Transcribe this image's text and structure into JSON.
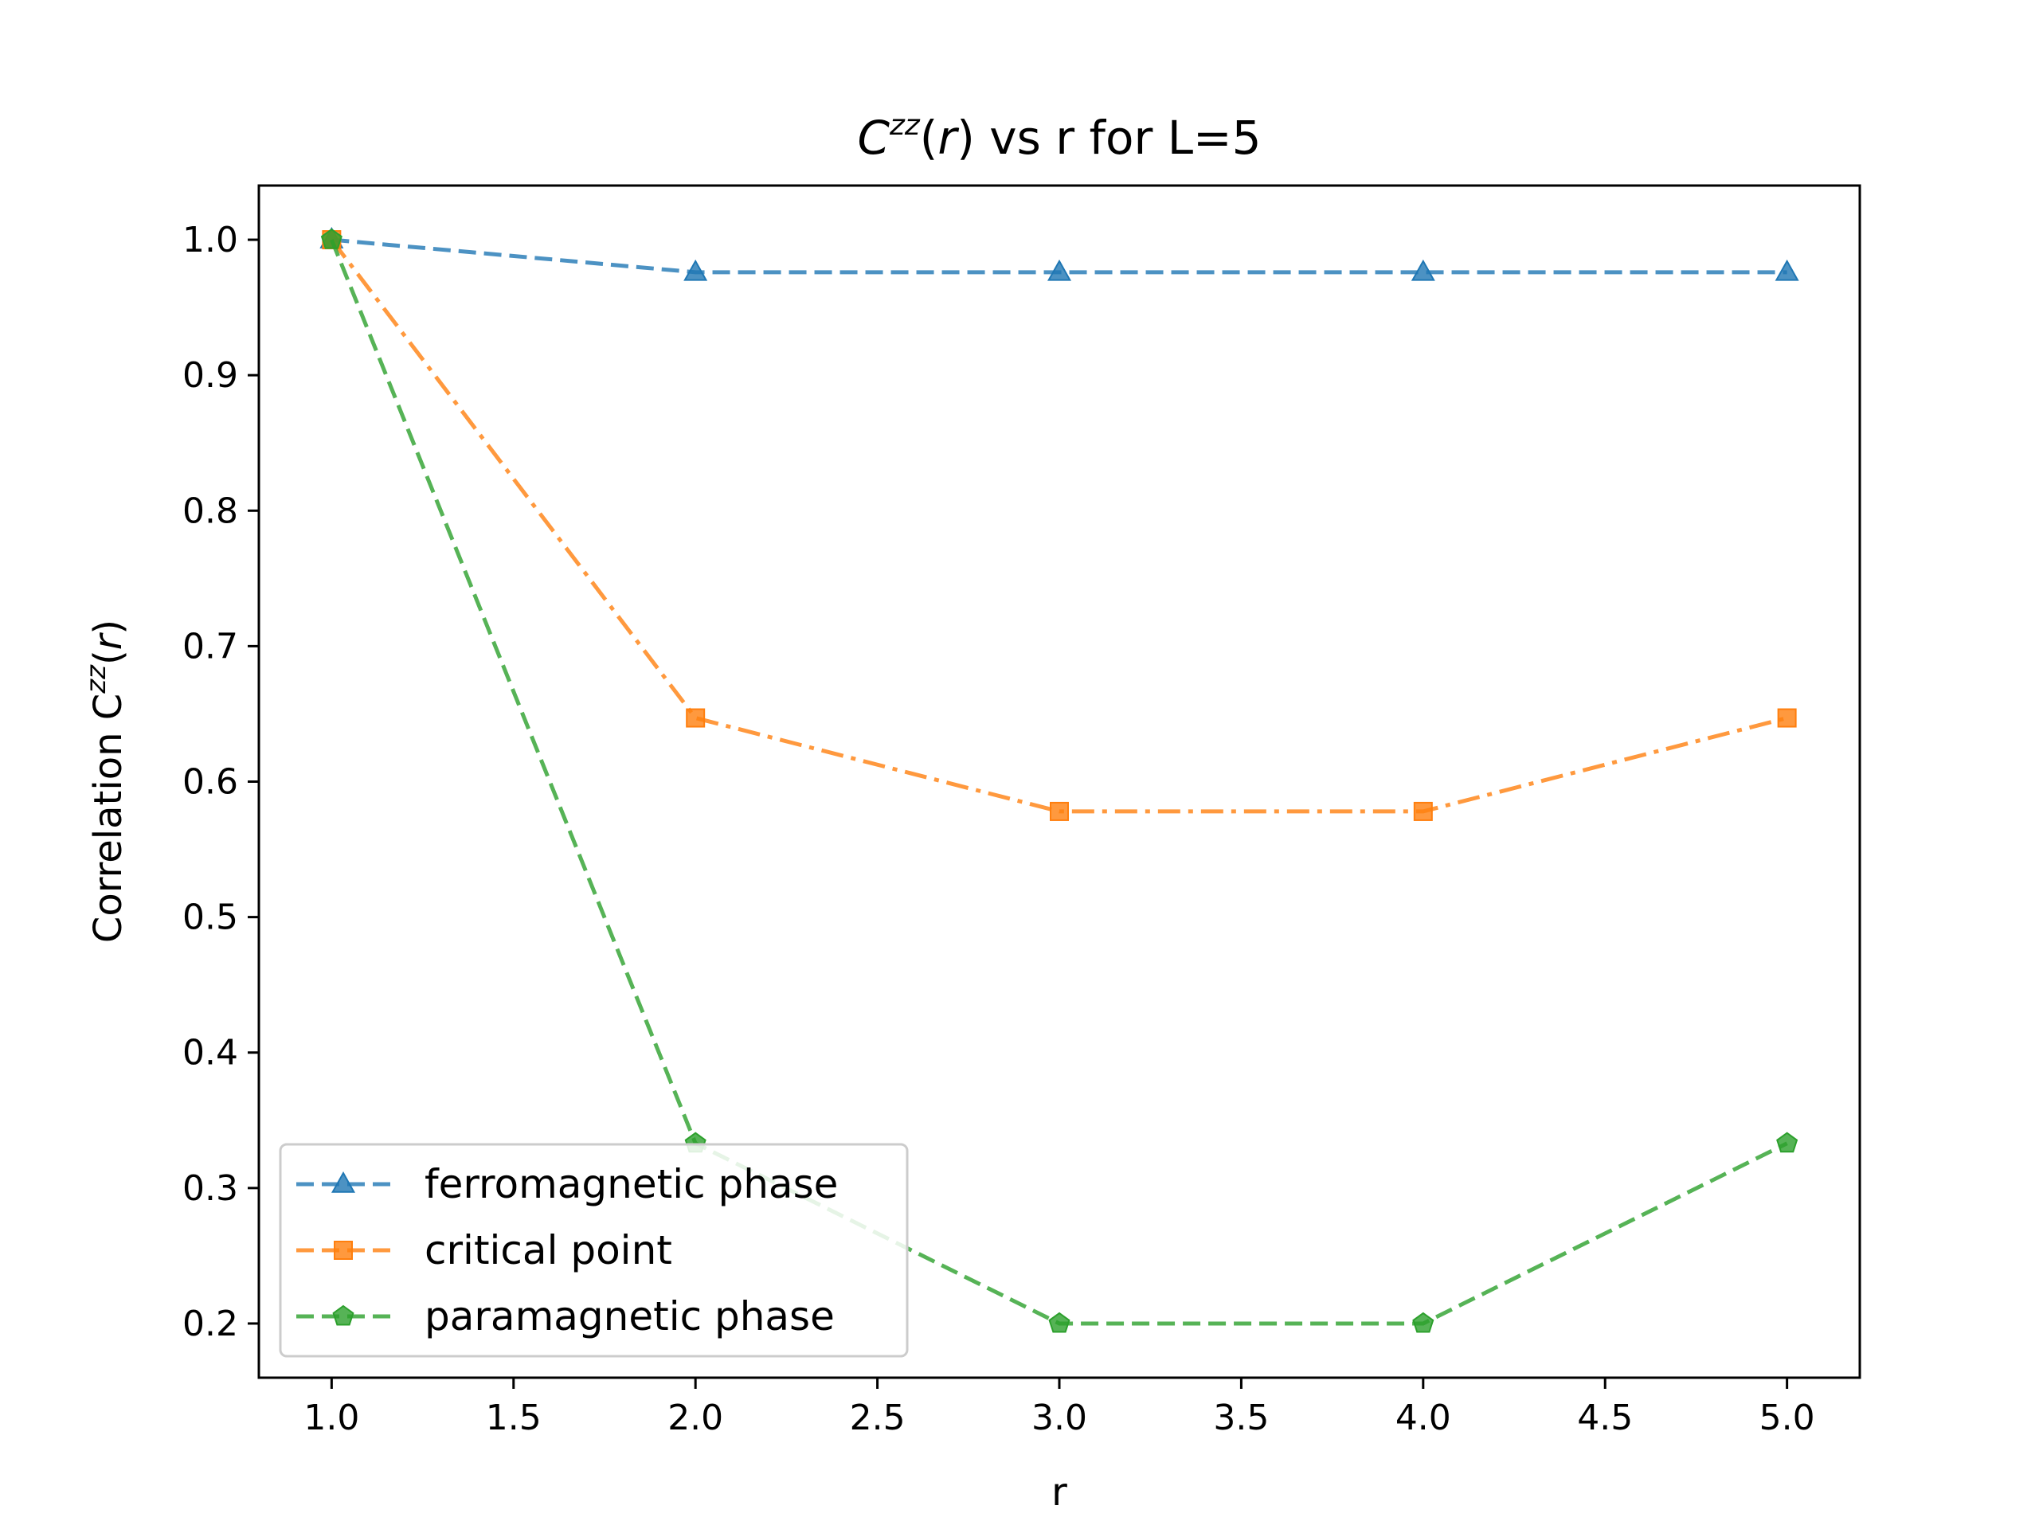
{
  "chart_data": {
    "type": "line",
    "title": {
      "pre": "C",
      "sup": "zz",
      "mid": "(",
      "var": "r",
      "post": ") vs r for L=5"
    },
    "xlabel": "r",
    "ylabel": {
      "pre": "Correlation C",
      "sup": "zz",
      "mid": "(",
      "var": "r",
      "post": ")"
    },
    "xlim": [
      0.8,
      5.2
    ],
    "ylim": [
      0.16,
      1.04
    ],
    "xticks": [
      "1.0",
      "1.5",
      "2.0",
      "2.5",
      "3.0",
      "3.5",
      "4.0",
      "4.5",
      "5.0"
    ],
    "yticks": [
      "0.2",
      "0.3",
      "0.4",
      "0.5",
      "0.6",
      "0.7",
      "0.8",
      "0.9",
      "1.0"
    ],
    "legend_position": "lower-left",
    "x": [
      1,
      2,
      3,
      4,
      5
    ],
    "series": [
      {
        "name": "ferromagnetic phase",
        "values": [
          1.0,
          0.976,
          0.976,
          0.976,
          0.976
        ],
        "color": "#1f77b4",
        "marker": "triangle",
        "linestyle": "dashed"
      },
      {
        "name": "critical point",
        "values": [
          1.0,
          0.647,
          0.578,
          0.578,
          0.647
        ],
        "color": "#ff7f0e",
        "marker": "square",
        "linestyle": "dashdot"
      },
      {
        "name": "paramagnetic phase",
        "values": [
          1.0,
          0.333,
          0.2,
          0.2,
          0.333
        ],
        "color": "#2ca02c",
        "marker": "pentagon",
        "linestyle": "dashed"
      }
    ]
  }
}
